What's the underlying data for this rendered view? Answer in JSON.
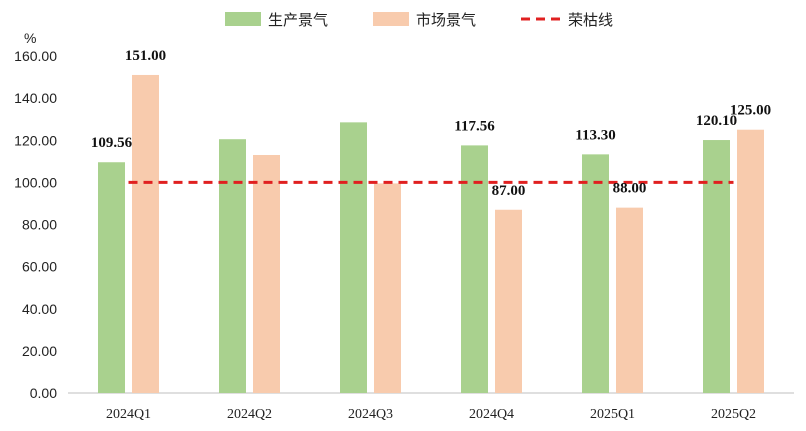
{
  "chart_data": {
    "type": "bar",
    "ylabel": "%",
    "ylim": [
      0,
      160
    ],
    "yticks": [
      "0.00",
      "20.00",
      "40.00",
      "60.00",
      "80.00",
      "100.00",
      "120.00",
      "140.00",
      "160.00"
    ],
    "categories": [
      "2024Q1",
      "2024Q2",
      "2024Q3",
      "2024Q4",
      "2025Q1",
      "2025Q2"
    ],
    "series": [
      {
        "name": "生产景气",
        "color": "#a9d18e",
        "values": [
          109.56,
          120.5,
          128.5,
          117.56,
          113.3,
          120.1
        ],
        "labels": [
          "109.56",
          "",
          "",
          "117.56",
          "113.30",
          "120.10"
        ]
      },
      {
        "name": "市场景气",
        "color": "#f8cbad",
        "values": [
          151.0,
          113.0,
          99.5,
          87.0,
          88.0,
          125.0
        ],
        "labels": [
          "151.00",
          "",
          "",
          "87.00",
          "88.00",
          "125.00"
        ]
      }
    ],
    "reference_line": {
      "name": "荣枯线",
      "value": 100,
      "color": "#e02020",
      "style": "dashed"
    },
    "legend": "top",
    "grid": false
  }
}
